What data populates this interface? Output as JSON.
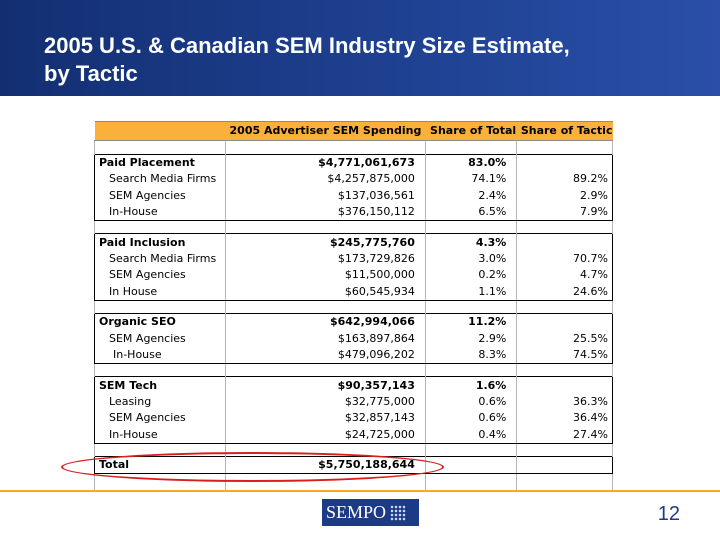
{
  "slide": {
    "title_line1": "2005 U.S. & Canadian SEM Industry Size Estimate,",
    "title_line2": "by Tactic",
    "page_number": "12",
    "accent_color": "#f7a72a",
    "title_bar_color": "#1d3f8e"
  },
  "table": {
    "headers": [
      "",
      "2005 Advertiser SEM Spending",
      "Share of Total",
      "Share of Tactic"
    ],
    "groups": [
      {
        "label": "Paid Placement",
        "spending": "$4,771,061,673",
        "share_total": "83.0%",
        "share_tactic": "",
        "rows": [
          {
            "label": "Search Media Firms",
            "spending": "$4,257,875,000",
            "share_total": "74.1%",
            "share_tactic": "89.2%"
          },
          {
            "label": "SEM Agencies",
            "spending": "$137,036,561",
            "share_total": "2.4%",
            "share_tactic": "2.9%"
          },
          {
            "label": "In-House",
            "spending": "$376,150,112",
            "share_total": "6.5%",
            "share_tactic": "7.9%"
          }
        ]
      },
      {
        "label": "Paid Inclusion",
        "spending": "$245,775,760",
        "share_total": "4.3%",
        "share_tactic": "",
        "rows": [
          {
            "label": "Search Media Firms",
            "spending": "$173,729,826",
            "share_total": "3.0%",
            "share_tactic": "70.7%"
          },
          {
            "label": "SEM Agencies",
            "spending": "$11,500,000",
            "share_total": "0.2%",
            "share_tactic": "4.7%"
          },
          {
            "label": "In House",
            "spending": "$60,545,934",
            "share_total": "1.1%",
            "share_tactic": "24.6%"
          }
        ]
      },
      {
        "label": "Organic SEO",
        "spending": "$642,994,066",
        "share_total": "11.2%",
        "share_tactic": "",
        "rows": [
          {
            "label": "SEM Agencies",
            "spending": "$163,897,864",
            "share_total": "2.9%",
            "share_tactic": "25.5%"
          },
          {
            "label": "In-House",
            "spending": "$479,096,202",
            "share_total": "8.3%",
            "share_tactic": "74.5%"
          }
        ]
      },
      {
        "label": "SEM Tech",
        "spending": "$90,357,143",
        "share_total": "1.6%",
        "share_tactic": "",
        "rows": [
          {
            "label": "Leasing",
            "spending": "$32,775,000",
            "share_total": "0.6%",
            "share_tactic": "36.3%"
          },
          {
            "label": "SEM Agencies",
            "spending": "$32,857,143",
            "share_total": "0.6%",
            "share_tactic": "36.4%"
          },
          {
            "label": "In-House",
            "spending": "$24,725,000",
            "share_total": "0.4%",
            "share_tactic": "27.4%"
          }
        ]
      }
    ],
    "total": {
      "label": "Total",
      "spending": "$5,750,188,644",
      "share_total": "",
      "share_tactic": ""
    }
  },
  "logo": {
    "text": "SEMPO"
  }
}
